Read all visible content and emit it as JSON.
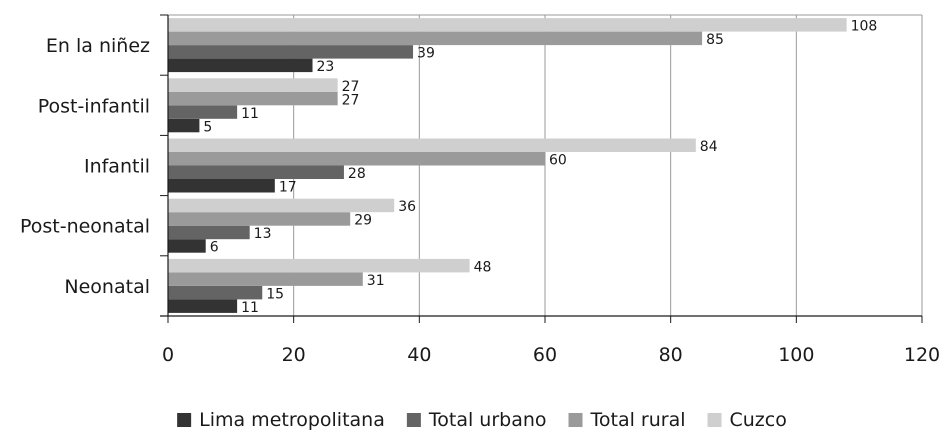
{
  "chart_data": {
    "type": "bar",
    "orientation": "horizontal",
    "categories": [
      "En la niñez",
      "Post-infantil",
      "Infantil",
      "Post-neonatal",
      "Neonatal"
    ],
    "series": [
      {
        "name": "Lima metropolitana",
        "color": "#333333",
        "values": [
          23,
          5,
          17,
          6,
          11
        ]
      },
      {
        "name": "Total urbano",
        "color": "#646464",
        "values": [
          39,
          11,
          28,
          13,
          15
        ]
      },
      {
        "name": "Total rural",
        "color": "#9a9a9a",
        "values": [
          85,
          27,
          60,
          29,
          31
        ]
      },
      {
        "name": "Cuzco",
        "color": "#cfcfcf",
        "values": [
          108,
          27,
          84,
          36,
          48
        ]
      }
    ],
    "xlim": [
      0,
      120
    ],
    "xticks": [
      0,
      20,
      40,
      60,
      80,
      100,
      120
    ],
    "grid": "vertical",
    "legend_position": "bottom",
    "title": "",
    "xlabel": "",
    "ylabel": ""
  }
}
